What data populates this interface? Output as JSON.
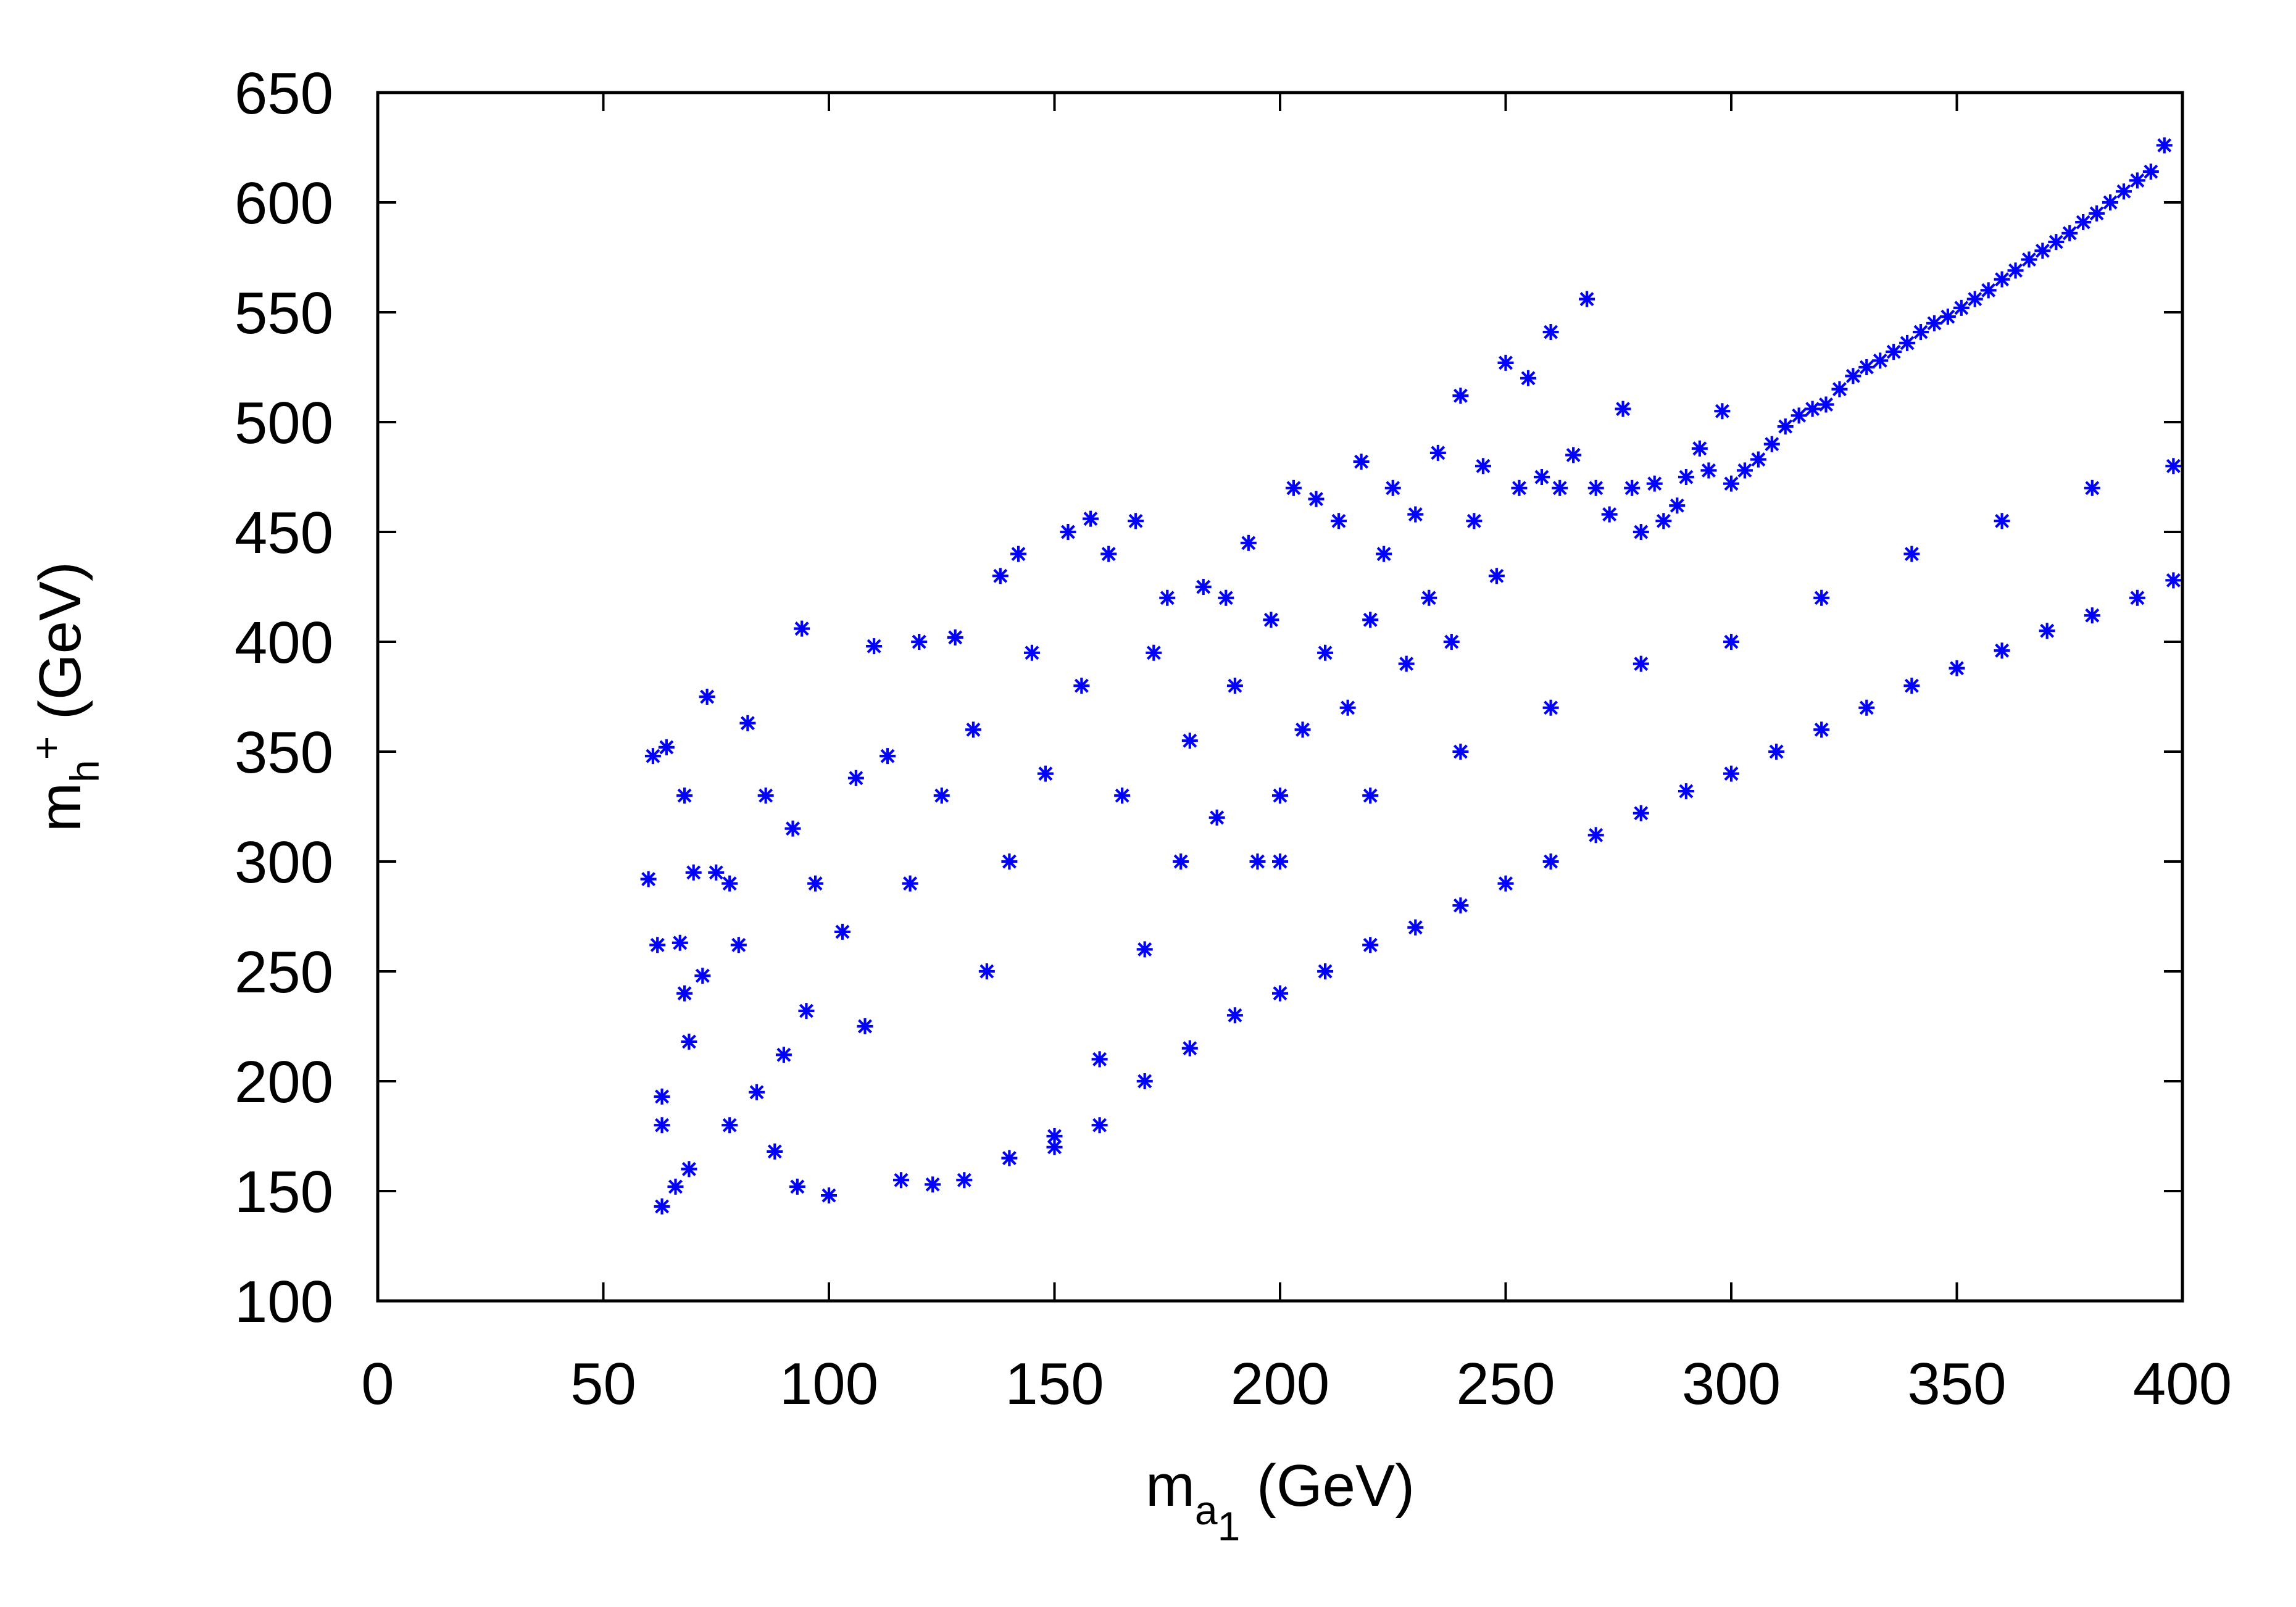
{
  "chart_data": {
    "type": "scatter",
    "title": "",
    "xlabel": {
      "main": "m",
      "sub": "a",
      "subsub": "1",
      "unit": " (GeV)"
    },
    "ylabel": {
      "main": "m",
      "sub": "h",
      "sup": "+",
      "unit": " (GeV)"
    },
    "xlim": [
      0,
      400
    ],
    "ylim": [
      100,
      650
    ],
    "xticks": [
      0,
      50,
      100,
      150,
      200,
      250,
      300,
      350,
      400
    ],
    "yticks": [
      100,
      150,
      200,
      250,
      300,
      350,
      400,
      450,
      500,
      550,
      600,
      650
    ],
    "xtick_labels": [
      "0",
      "50",
      "100",
      "150",
      "200",
      "250",
      "300",
      "350",
      "400"
    ],
    "ytick_labels": [
      "100",
      "150",
      "200",
      "250",
      "300",
      "350",
      "400",
      "450",
      "500",
      "550",
      "600",
      "650"
    ],
    "grid": false,
    "legend": "none",
    "marker": "asterisk",
    "color": "#0000ff",
    "series": [
      {
        "values": [
          [
            60,
            292
          ],
          [
            61,
            348
          ],
          [
            62,
            262
          ],
          [
            63,
            143
          ],
          [
            63,
            193
          ],
          [
            63,
            180
          ],
          [
            64,
            352
          ],
          [
            66,
            152
          ],
          [
            67,
            263
          ],
          [
            68,
            330
          ],
          [
            68,
            240
          ],
          [
            69,
            160
          ],
          [
            69,
            218
          ],
          [
            70,
            295
          ],
          [
            72,
            248
          ],
          [
            73,
            375
          ],
          [
            75,
            295
          ],
          [
            78,
            290
          ],
          [
            78,
            180
          ],
          [
            80,
            262
          ],
          [
            82,
            363
          ],
          [
            84,
            195
          ],
          [
            86,
            330
          ],
          [
            88,
            168
          ],
          [
            90,
            212
          ],
          [
            92,
            315
          ],
          [
            93,
            152
          ],
          [
            94,
            406
          ],
          [
            95,
            232
          ],
          [
            97,
            290
          ],
          [
            100,
            148
          ],
          [
            103,
            268
          ],
          [
            106,
            338
          ],
          [
            108,
            225
          ],
          [
            110,
            398
          ],
          [
            113,
            348
          ],
          [
            116,
            155
          ],
          [
            118,
            290
          ],
          [
            120,
            400
          ],
          [
            123,
            153
          ],
          [
            125,
            330
          ],
          [
            128,
            402
          ],
          [
            130,
            155
          ],
          [
            132,
            360
          ],
          [
            135,
            250
          ],
          [
            138,
            430
          ],
          [
            140,
            300
          ],
          [
            142,
            440
          ],
          [
            145,
            395
          ],
          [
            148,
            340
          ],
          [
            150,
            175
          ],
          [
            153,
            450
          ],
          [
            156,
            380
          ],
          [
            158,
            456
          ],
          [
            160,
            210
          ],
          [
            162,
            440
          ],
          [
            165,
            330
          ],
          [
            168,
            455
          ],
          [
            170,
            260
          ],
          [
            172,
            395
          ],
          [
            175,
            420
          ],
          [
            178,
            300
          ],
          [
            180,
            355
          ],
          [
            183,
            425
          ],
          [
            186,
            320
          ],
          [
            188,
            420
          ],
          [
            190,
            380
          ],
          [
            193,
            445
          ],
          [
            195,
            300
          ],
          [
            198,
            410
          ],
          [
            200,
            330
          ],
          [
            203,
            470
          ],
          [
            205,
            360
          ],
          [
            208,
            465
          ],
          [
            210,
            395
          ],
          [
            213,
            455
          ],
          [
            215,
            370
          ],
          [
            218,
            482
          ],
          [
            220,
            410
          ],
          [
            223,
            440
          ],
          [
            225,
            470
          ],
          [
            228,
            390
          ],
          [
            230,
            458
          ],
          [
            233,
            420
          ],
          [
            235,
            486
          ],
          [
            238,
            400
          ],
          [
            240,
            512
          ],
          [
            243,
            455
          ],
          [
            245,
            480
          ],
          [
            248,
            430
          ],
          [
            250,
            527
          ],
          [
            253,
            470
          ],
          [
            255,
            520
          ],
          [
            258,
            475
          ],
          [
            260,
            541
          ],
          [
            262,
            470
          ],
          [
            265,
            485
          ],
          [
            268,
            556
          ],
          [
            270,
            470
          ],
          [
            273,
            458
          ],
          [
            276,
            506
          ],
          [
            278,
            470
          ],
          [
            280,
            450
          ],
          [
            283,
            472
          ],
          [
            285,
            455
          ],
          [
            288,
            462
          ],
          [
            290,
            475
          ],
          [
            293,
            488
          ],
          [
            295,
            478
          ],
          [
            298,
            505
          ],
          [
            300,
            472
          ],
          [
            303,
            478
          ],
          [
            306,
            483
          ],
          [
            309,
            490
          ],
          [
            312,
            498
          ],
          [
            315,
            503
          ],
          [
            318,
            506
          ],
          [
            321,
            508
          ],
          [
            324,
            515
          ],
          [
            327,
            521
          ],
          [
            330,
            525
          ],
          [
            333,
            528
          ],
          [
            336,
            532
          ],
          [
            339,
            536
          ],
          [
            342,
            541
          ],
          [
            345,
            545
          ],
          [
            348,
            548
          ],
          [
            351,
            552
          ],
          [
            354,
            556
          ],
          [
            357,
            560
          ],
          [
            360,
            565
          ],
          [
            363,
            569
          ],
          [
            366,
            574
          ],
          [
            369,
            578
          ],
          [
            372,
            582
          ],
          [
            375,
            586
          ],
          [
            378,
            591
          ],
          [
            381,
            595
          ],
          [
            384,
            600
          ],
          [
            387,
            605
          ],
          [
            390,
            610
          ],
          [
            393,
            614
          ],
          [
            396,
            626
          ],
          [
            140,
            165
          ],
          [
            150,
            170
          ],
          [
            160,
            180
          ],
          [
            170,
            200
          ],
          [
            180,
            215
          ],
          [
            190,
            230
          ],
          [
            200,
            240
          ],
          [
            210,
            250
          ],
          [
            220,
            262
          ],
          [
            230,
            270
          ],
          [
            240,
            280
          ],
          [
            250,
            290
          ],
          [
            260,
            300
          ],
          [
            270,
            312
          ],
          [
            280,
            322
          ],
          [
            290,
            332
          ],
          [
            300,
            340
          ],
          [
            310,
            350
          ],
          [
            320,
            360
          ],
          [
            330,
            370
          ],
          [
            340,
            380
          ],
          [
            350,
            388
          ],
          [
            360,
            396
          ],
          [
            370,
            405
          ],
          [
            380,
            412
          ],
          [
            390,
            420
          ],
          [
            398,
            428
          ],
          [
            200,
            300
          ],
          [
            220,
            330
          ],
          [
            240,
            350
          ],
          [
            260,
            370
          ],
          [
            280,
            390
          ],
          [
            300,
            400
          ],
          [
            320,
            420
          ],
          [
            340,
            440
          ],
          [
            360,
            455
          ],
          [
            380,
            470
          ],
          [
            398,
            480
          ]
        ]
      }
    ]
  }
}
